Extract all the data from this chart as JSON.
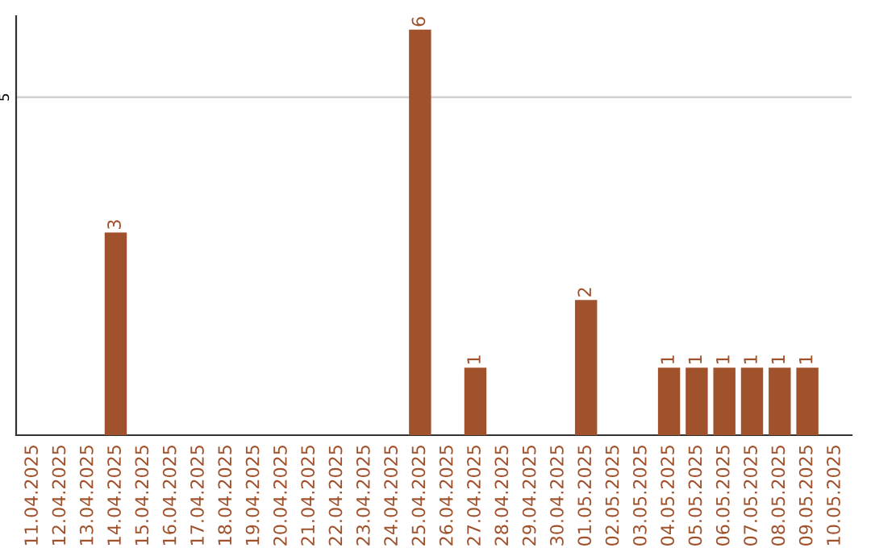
{
  "chart_data": {
    "type": "bar",
    "categories": [
      "11.04.2025",
      "12.04.2025",
      "13.04.2025",
      "14.04.2025",
      "15.04.2025",
      "16.04.2025",
      "17.04.2025",
      "18.04.2025",
      "19.04.2025",
      "20.04.2025",
      "21.04.2025",
      "22.04.2025",
      "23.04.2025",
      "24.04.2025",
      "25.04.2025",
      "26.04.2025",
      "27.04.2025",
      "28.04.2025",
      "29.04.2025",
      "30.04.2025",
      "01.05.2025",
      "02.05.2025",
      "03.05.2025",
      "04.05.2025",
      "05.05.2025",
      "06.05.2025",
      "07.05.2025",
      "08.05.2025",
      "09.05.2025",
      "10.05.2025"
    ],
    "values": [
      0,
      0,
      0,
      3,
      0,
      0,
      0,
      0,
      0,
      0,
      0,
      0,
      0,
      0,
      6,
      0,
      1,
      0,
      0,
      0,
      2,
      0,
      0,
      1,
      1,
      1,
      1,
      1,
      1,
      0
    ],
    "value_labels": [
      null,
      null,
      null,
      "3",
      null,
      null,
      null,
      null,
      null,
      null,
      null,
      null,
      null,
      null,
      "6",
      null,
      "1",
      null,
      null,
      null,
      "2",
      null,
      null,
      "1",
      "1",
      "1",
      "1",
      "1",
      "1",
      null
    ],
    "color": "#a0522d",
    "ylim": [
      0,
      6.2
    ],
    "yticks": [
      5
    ],
    "grid": "y"
  }
}
